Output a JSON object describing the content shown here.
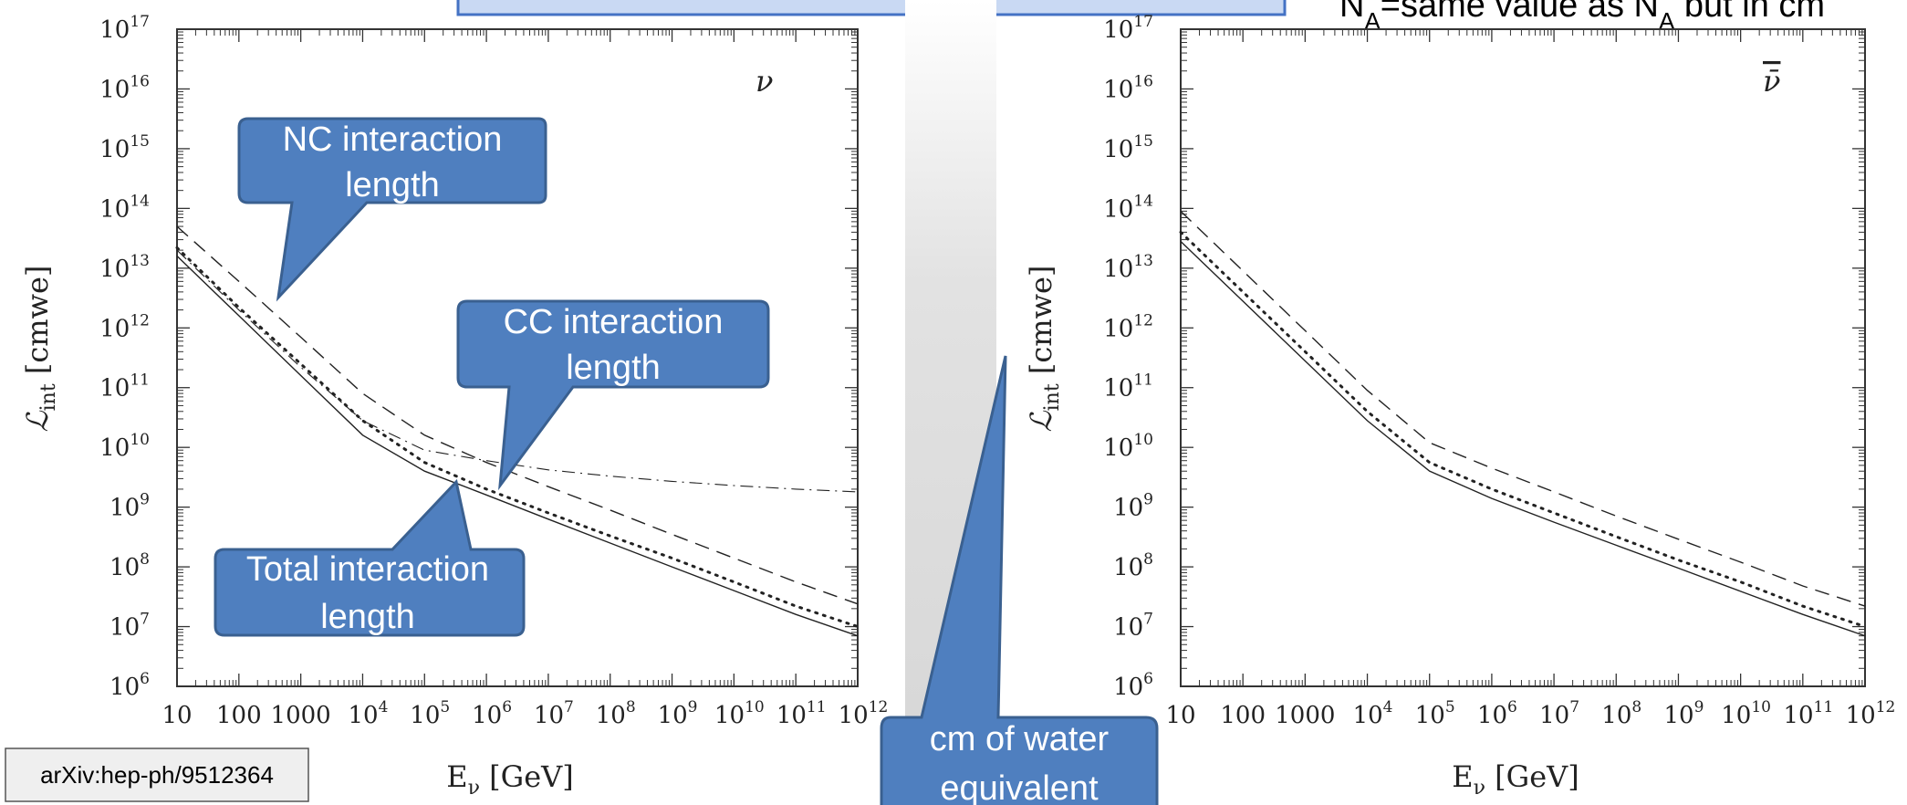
{
  "chart_data": [
    {
      "type": "line",
      "title": "",
      "panel_symbol": "ν",
      "xlabel": "E_ν [GeV]",
      "ylabel": "ℒ_int [cmwe]",
      "x_scale": "log",
      "y_scale": "log",
      "xlim": [
        10,
        1000000000000.0
      ],
      "ylim": [
        1000000.0,
        1e+17
      ],
      "x_ticks": [
        "10",
        "100",
        "1000",
        "10^4",
        "10^5",
        "10^6",
        "10^7",
        "10^8",
        "10^9",
        "10^10",
        "10^11",
        "10^12"
      ],
      "y_ticks": [
        "10^6",
        "10^7",
        "10^8",
        "10^9",
        "10^10",
        "10^11",
        "10^12",
        "10^13",
        "10^14",
        "10^15",
        "10^16",
        "10^17"
      ],
      "legend": "none",
      "series": [
        {
          "style": "solid",
          "x": [
            10,
            100,
            1000,
            10000,
            100000,
            1000000,
            10000000,
            100000000,
            1000000000,
            10000000000,
            100000000000,
            1000000000000
          ],
          "y": [
            16000000000000.0,
            1600000000000.0,
            160000000000.0,
            16000000000.0,
            4000000000.0,
            1600000000.0,
            630000000.0,
            250000000.0,
            100000000.0,
            40000000.0,
            16000000.0,
            7000000.0
          ]
        },
        {
          "style": "dotted",
          "x": [
            10,
            100,
            1000,
            10000,
            100000,
            1000000,
            10000000,
            100000000,
            1000000000,
            10000000000,
            100000000000,
            1000000000000
          ],
          "y": [
            22000000000000.0,
            2200000000000.0,
            250000000000.0,
            28000000000.0,
            5600000000.0,
            2000000000.0,
            800000000.0,
            330000000.0,
            140000000.0,
            56000000.0,
            22000000.0,
            10000000.0
          ]
        },
        {
          "style": "dashed",
          "x": [
            10,
            100,
            1000,
            10000,
            100000,
            1000000,
            10000000,
            100000000,
            1000000000,
            10000000000,
            100000000000,
            1000000000000
          ],
          "y": [
            50000000000000.0,
            6000000000000.0,
            700000000000.0,
            80000000000.0,
            16000000000.0,
            5600000000.0,
            2200000000.0,
            890000000.0,
            350000000.0,
            140000000.0,
            56000000.0,
            24000000.0
          ]
        },
        {
          "style": "dashdot",
          "x": [
            10,
            100,
            1000,
            10000,
            100000,
            1000000,
            10000000,
            100000000,
            1000000000,
            10000000000,
            100000000000,
            1000000000000
          ],
          "y": [
            20000000000000.0,
            2000000000000.0,
            220000000000.0,
            28000000000.0,
            9000000000.0,
            6000000000.0,
            4200000000.0,
            3300000000.0,
            2700000000.0,
            2300000000.0,
            2000000000.0,
            1800000000.0
          ]
        }
      ]
    },
    {
      "type": "line",
      "title": "",
      "panel_symbol": "ν̄",
      "xlabel": "E_ν [GeV]",
      "ylabel": "ℒ_int [cmwe]",
      "x_scale": "log",
      "y_scale": "log",
      "xlim": [
        10,
        1000000000000.0
      ],
      "ylim": [
        1000000.0,
        1e+17
      ],
      "x_ticks": [
        "10",
        "100",
        "1000",
        "10^4",
        "10^5",
        "10^6",
        "10^7",
        "10^8",
        "10^9",
        "10^10",
        "10^11",
        "10^12"
      ],
      "y_ticks": [
        "10^6",
        "10^7",
        "10^8",
        "10^9",
        "10^10",
        "10^11",
        "10^12",
        "10^13",
        "10^14",
        "10^15",
        "10^16",
        "10^17"
      ],
      "legend": "none",
      "series": [
        {
          "style": "solid",
          "x": [
            10,
            100,
            1000,
            10000,
            100000,
            1000000,
            10000000,
            100000000,
            1000000000,
            10000000000,
            100000000000,
            1000000000000
          ],
          "y": [
            28000000000000.0,
            2800000000000.0,
            280000000000.0,
            28000000000.0,
            4000000000.0,
            1400000000.0,
            560000000.0,
            230000000.0,
            95000000.0,
            39000000.0,
            16000000.0,
            7000000.0
          ]
        },
        {
          "style": "dotted",
          "x": [
            10,
            100,
            1000,
            10000,
            100000,
            1000000,
            10000000,
            100000000,
            1000000000,
            10000000000,
            100000000000,
            1000000000000
          ],
          "y": [
            40000000000000.0,
            4000000000000.0,
            400000000000.0,
            40000000000.0,
            5600000000.0,
            2000000000.0,
            800000000.0,
            320000000.0,
            130000000.0,
            56000000.0,
            22000000.0,
            10000000.0
          ]
        },
        {
          "style": "dashed",
          "x": [
            10,
            100,
            1000,
            10000,
            100000,
            1000000,
            10000000,
            100000000,
            1000000000,
            10000000000,
            100000000000,
            1000000000000
          ],
          "y": [
            90000000000000.0,
            9000000000000.0,
            900000000000.0,
            90000000000.0,
            12000000000.0,
            4500000000.0,
            1800000000.0,
            710000000.0,
            290000000.0,
            120000000.0,
            48000000.0,
            22000000.0
          ]
        }
      ]
    }
  ],
  "callouts": {
    "nc": [
      "NC interaction",
      "length"
    ],
    "cc": [
      "CC interaction",
      "length"
    ],
    "total": [
      "Total interaction",
      "length"
    ],
    "water": [
      "cm of water",
      "equivalent"
    ]
  },
  "note": {
    "prefix": "N",
    "sub1": "A",
    "middle": "=same value as N",
    "sub2": "A",
    "suffix": " but in cm"
  },
  "reference": "arXiv:hep-ph/9512364",
  "colors": {
    "callout_fill": "#4f7fbf",
    "callout_stroke": "#3a6090",
    "banner_fill": "#c9d9f3",
    "banner_stroke": "#4472c4"
  }
}
